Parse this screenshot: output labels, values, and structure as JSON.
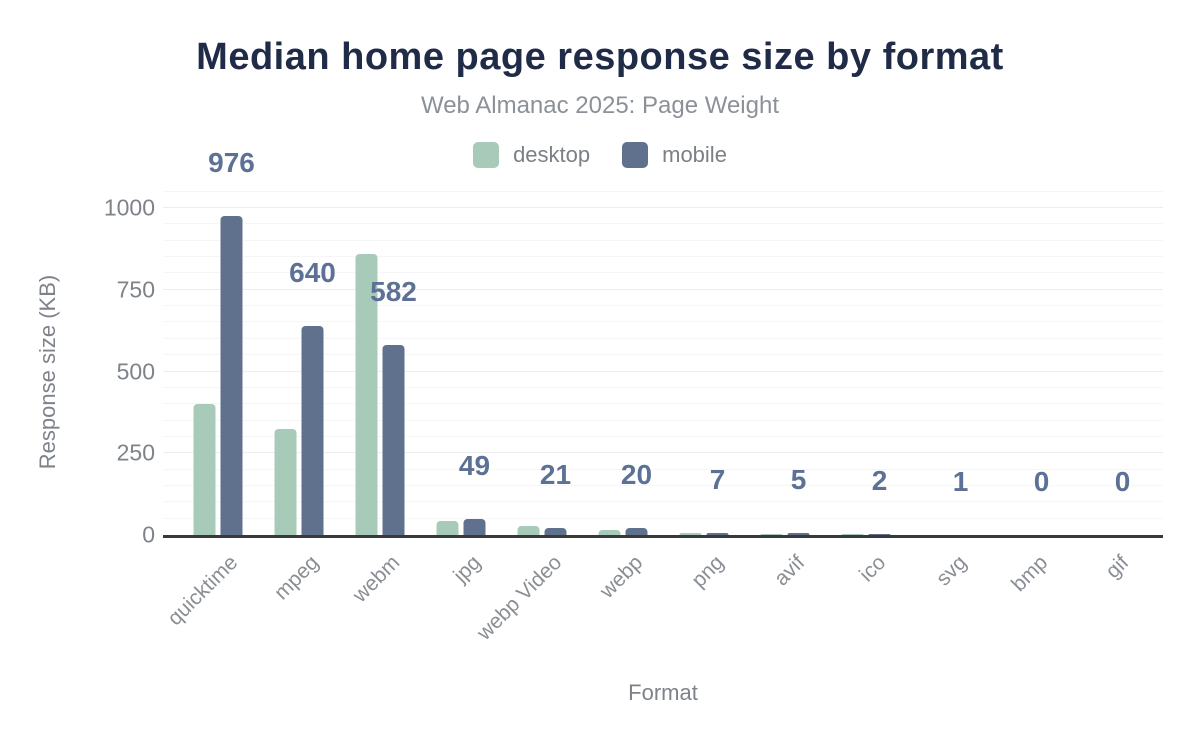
{
  "header": {
    "title": "Median home page response size by format",
    "subtitle": "Web Almanac 2025: Page Weight"
  },
  "axes": {
    "y_title": "Response size (KB)",
    "x_title": "Format"
  },
  "colors": {
    "title": "#1f2b47",
    "subtitle": "#8b9198",
    "axis_text": "#7e838a",
    "xtick_text": "#8a8e95",
    "value_label": "#5c7195",
    "desktop": "#a8cbb9",
    "mobile": "#5f718c",
    "axis_line": "#37393b",
    "grid_major": "#ededef",
    "grid_minor": "#f6f6f8"
  },
  "chart_data": {
    "type": "bar",
    "title": "Median home page response size by format",
    "subtitle": "Web Almanac 2025: Page Weight",
    "xlabel": "Format",
    "ylabel": "Response size (KB)",
    "categories": [
      "quicktime",
      "mpeg",
      "webm",
      "jpg",
      "webp Video",
      "webp",
      "png",
      "avif",
      "ico",
      "svg",
      "bmp",
      "gif"
    ],
    "series": [
      {
        "name": "desktop",
        "color": "#a8cbb9",
        "values": [
          400,
          325,
          860,
          44,
          28,
          16,
          6,
          4,
          2,
          1,
          0,
          0
        ]
      },
      {
        "name": "mobile",
        "color": "#5f718c",
        "values": [
          976,
          640,
          582,
          49,
          21,
          20,
          7,
          5,
          2,
          1,
          0,
          0
        ]
      }
    ],
    "data_labels": {
      "labeled_series": "mobile",
      "values": [
        "976",
        "640",
        "582",
        "49",
        "21",
        "20",
        "7",
        "5",
        "2",
        "1",
        "0",
        "0"
      ]
    },
    "yticks": [
      0,
      250,
      500,
      750,
      1000
    ],
    "ylim": [
      0,
      1054
    ],
    "grid": {
      "minor_step": 50,
      "major_step": 250,
      "horizontal": true
    },
    "legend_position": "top"
  }
}
